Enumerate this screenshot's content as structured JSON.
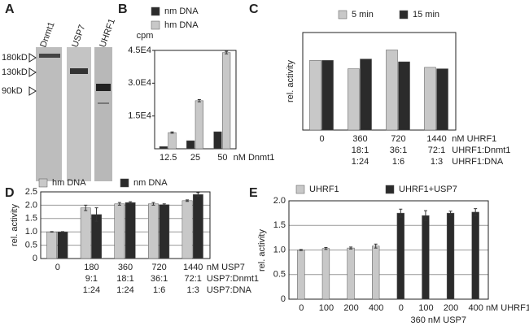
{
  "gel": {
    "panel": "A",
    "lanes": [
      "Dnmt1",
      "USP7",
      "UHRF1"
    ],
    "markers": [
      "180kD",
      "130kD",
      "90kD"
    ]
  },
  "chart_data": [
    {
      "type": "bar",
      "panel": "B",
      "y_label": "cpm",
      "x_label_rows": [
        "nM Dnmt1"
      ],
      "categories": [
        "12.5",
        "25",
        "50"
      ],
      "series": [
        {
          "name": "nm DNA",
          "color": "#2b2b2b",
          "values": [
            1000,
            3700,
            7800
          ]
        },
        {
          "name": "hm DNA",
          "color": "#c8c8c8",
          "values": [
            7400,
            22000,
            44000
          ],
          "errors": [
            300,
            500,
            600
          ]
        }
      ],
      "ylim": [
        0,
        45000
      ],
      "yticks": [
        {
          "value": 15000,
          "label": "1.5E4"
        },
        {
          "value": 30000,
          "label": "3.0E4"
        },
        {
          "value": 45000,
          "label": "4.5E4"
        }
      ],
      "grid": false
    },
    {
      "type": "bar",
      "panel": "C",
      "y_label": "rel. activity",
      "x_label_rows": [
        "nM UHRF1",
        "UHRF1:Dnmt1",
        "UHRF1:DNA"
      ],
      "categories": [
        "0",
        "360",
        "720",
        "1440"
      ],
      "category_rows": [
        [
          null,
          "18:1",
          "36:1",
          "72:1"
        ],
        [
          null,
          "1:24",
          "1:6",
          "1:3"
        ]
      ],
      "series": [
        {
          "name": "5 min",
          "color": "#c8c8c8",
          "values": [
            1.0,
            0.88,
            1.15,
            0.9
          ]
        },
        {
          "name": "15 min",
          "color": "#2b2b2b",
          "values": [
            1.0,
            1.02,
            0.98,
            0.88
          ]
        }
      ],
      "ylim": [
        0,
        1.4
      ],
      "grid": false
    },
    {
      "type": "bar",
      "panel": "D",
      "y_label": "rel. activity",
      "x_label_rows": [
        "nM USP7",
        "USP7:Dnmt1",
        "USP7:DNA"
      ],
      "categories": [
        "0",
        "180",
        "360",
        "720",
        "1440"
      ],
      "category_rows": [
        [
          null,
          "9:1",
          "18:1",
          "36:1",
          "72:1"
        ],
        [
          null,
          "1:24",
          "1:24",
          "1:6",
          "1:3"
        ]
      ],
      "series": [
        {
          "name": "hm DNA",
          "color": "#c8c8c8",
          "values": [
            1.0,
            1.9,
            2.05,
            2.05,
            2.17
          ],
          "errors": [
            0.01,
            0.1,
            0.05,
            0.05,
            0.03
          ]
        },
        {
          "name": "nm DNA",
          "color": "#2b2b2b",
          "values": [
            1.0,
            1.65,
            2.1,
            2.02,
            2.4
          ],
          "errors": [
            0.01,
            0.25,
            0.03,
            0.03,
            0.07
          ]
        }
      ],
      "ylim": [
        0,
        2.5
      ],
      "yticks": [
        0,
        {
          "value": 0.5,
          "label": "0.5"
        },
        {
          "value": 1,
          "label": "1.0"
        },
        {
          "value": 1.5,
          "label": "1.5"
        },
        {
          "value": 2,
          "label": "2.0"
        },
        {
          "value": 2.5,
          "label": "2.5"
        }
      ],
      "grid": true
    },
    {
      "type": "bar",
      "panel": "E",
      "y_label": "rel. activity",
      "x_label_rows": [
        "nM UHRF1"
      ],
      "group_label": "360 nM USP7",
      "categories": [
        "0",
        "100",
        "200",
        "400",
        "0",
        "100",
        "200",
        "400"
      ],
      "series": [
        {
          "name": "UHRF1",
          "color": "#c8c8c8",
          "values": [
            1.0,
            1.03,
            1.04,
            1.08,
            null,
            null,
            null,
            null
          ],
          "errors": [
            0.01,
            0.02,
            0.02,
            0.04,
            null,
            null,
            null,
            null
          ]
        },
        {
          "name": "UHRF1+USP7",
          "color": "#2b2b2b",
          "values": [
            null,
            null,
            null,
            null,
            1.75,
            1.7,
            1.75,
            1.77
          ],
          "errors": [
            null,
            null,
            null,
            null,
            0.08,
            0.1,
            0.04,
            0.07
          ]
        }
      ],
      "ylim": [
        0,
        2.0
      ],
      "yticks": [
        0,
        {
          "value": 0.5,
          "label": "0.5"
        },
        {
          "value": 1,
          "label": "1.0"
        },
        {
          "value": 1.5,
          "label": "1.5"
        },
        {
          "value": 2,
          "label": "2.0"
        }
      ],
      "grid": true
    }
  ]
}
